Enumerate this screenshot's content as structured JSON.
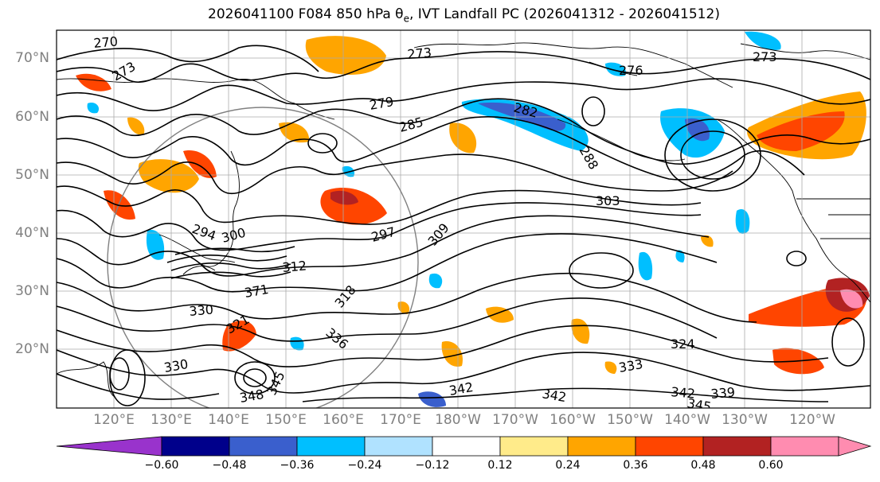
{
  "title": "2026041100 F084 850 hPa θ",
  "title_sub": "e",
  "title_tail": ", IVT Landfall PC (2026041312 - 2026041512)",
  "lat_labels": [
    "70°N",
    "60°N",
    "50°N",
    "40°N",
    "30°N",
    "20°N"
  ],
  "lon_labels": [
    "120°E",
    "130°E",
    "140°E",
    "150°E",
    "160°E",
    "170°E",
    "180°W",
    "170°W",
    "160°W",
    "150°W",
    "140°W",
    "130°W",
    "120°W"
  ],
  "colorbar": {
    "ticks": [
      "−0.60",
      "−0.48",
      "−0.36",
      "−0.24",
      "−0.12",
      "0.12",
      "0.24",
      "0.36",
      "0.48",
      "0.60"
    ],
    "colors": [
      "#9933cc",
      "#00008b",
      "#3a5fcd",
      "#00bfff",
      "#b0e2ff",
      "#ffffff",
      "#ffeb8a",
      "#ffa500",
      "#ff4500",
      "#b22222",
      "#ff8cb0",
      "#ff8cb0"
    ]
  },
  "contour_labels": [
    "270",
    "273",
    "273",
    "273",
    "276",
    "279",
    "282",
    "285",
    "288",
    "303",
    "297",
    "294",
    "300",
    "312",
    "309",
    "318",
    "321",
    "324",
    "330",
    "330",
    "333",
    "336",
    "339",
    "342",
    "342",
    "342",
    "345",
    "345",
    "348",
    "371"
  ]
}
